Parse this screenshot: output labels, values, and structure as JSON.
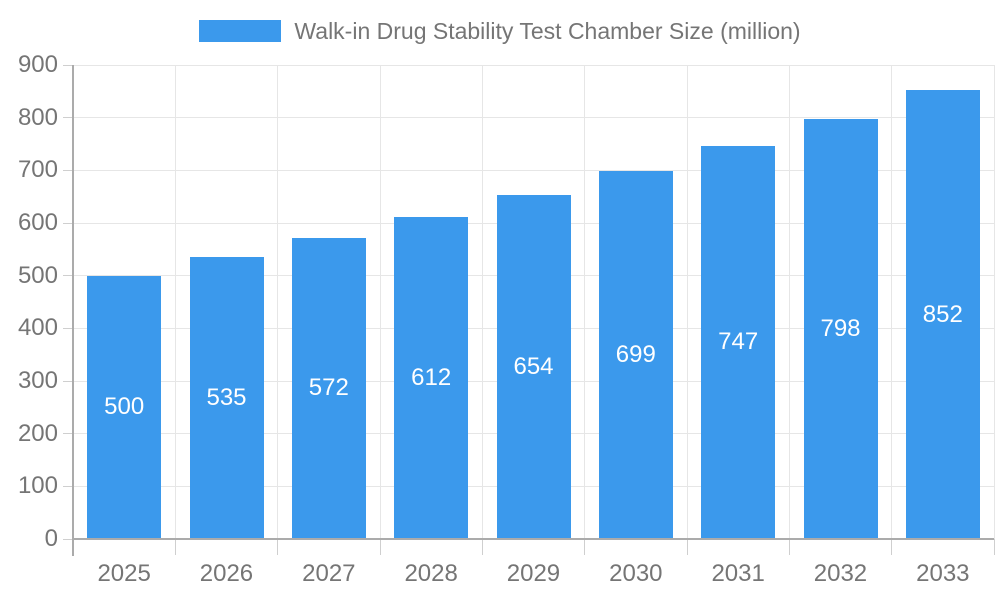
{
  "chart_data": {
    "type": "bar",
    "title": "Walk-in Drug Stability Test Chamber Size (million)",
    "categories": [
      "2025",
      "2026",
      "2027",
      "2028",
      "2029",
      "2030",
      "2031",
      "2032",
      "2033"
    ],
    "values": [
      500,
      535,
      572,
      612,
      654,
      699,
      747,
      798,
      852
    ],
    "xlabel": "",
    "ylabel": "",
    "ylim": [
      0,
      900
    ],
    "yticks": [
      0,
      100,
      200,
      300,
      400,
      500,
      600,
      700,
      800,
      900
    ],
    "grid": true,
    "legend_position": "top",
    "bar_labels_inside": true,
    "colors": {
      "bar": "#3b99ec",
      "bar_label": "#ffffff",
      "axis_text": "#757575",
      "grid_line": "#e6e6e6",
      "tick_line": "#cfcfcf",
      "axis_line": "#ababab",
      "background": "#ffffff"
    }
  }
}
